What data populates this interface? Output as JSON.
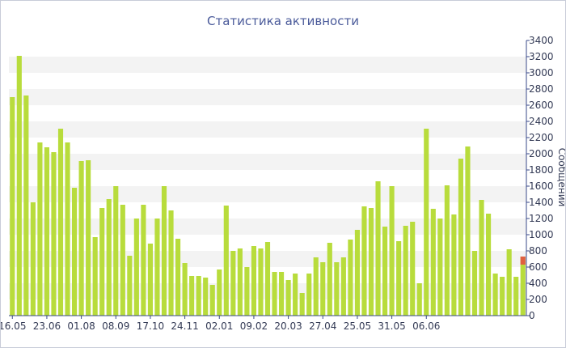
{
  "chart_data": {
    "type": "bar",
    "title": "Статистика активности",
    "ylabel": "Сообщений",
    "ylim": [
      0,
      3400
    ],
    "yticks": [
      0,
      200,
      400,
      600,
      800,
      1000,
      1200,
      1400,
      1600,
      1800,
      2000,
      2200,
      2400,
      2600,
      2800,
      3000,
      3200,
      3400
    ],
    "xticks": [
      {
        "label": "16.05",
        "index": 0
      },
      {
        "label": "23.06",
        "index": 5
      },
      {
        "label": "01.08",
        "index": 10
      },
      {
        "label": "08.09",
        "index": 15
      },
      {
        "label": "17.10",
        "index": 20
      },
      {
        "label": "24.11",
        "index": 25
      },
      {
        "label": "02.01",
        "index": 30
      },
      {
        "label": "09.02",
        "index": 35
      },
      {
        "label": "20.03",
        "index": 40
      },
      {
        "label": "27.04",
        "index": 45
      },
      {
        "label": "25.05",
        "index": 50
      },
      {
        "label": "31.05",
        "index": 55
      },
      {
        "label": "06.06",
        "index": 60
      }
    ],
    "values": [
      2700,
      3210,
      2720,
      1400,
      2140,
      2080,
      2020,
      2310,
      2140,
      1580,
      1910,
      1920,
      970,
      1330,
      1440,
      1600,
      1370,
      740,
      1200,
      1370,
      890,
      1200,
      1600,
      1300,
      950,
      650,
      490,
      490,
      470,
      380,
      570,
      1360,
      800,
      830,
      600,
      860,
      830,
      910,
      540,
      540,
      440,
      520,
      280,
      520,
      720,
      660,
      900,
      660,
      720,
      940,
      1060,
      1350,
      1330,
      1660,
      1100,
      1600,
      920,
      1110,
      1160,
      400,
      2310,
      1320,
      1200,
      1610,
      1250,
      1940,
      2090,
      800,
      1430,
      1260,
      520,
      480,
      820,
      480,
      730
    ],
    "highlight_index": 74,
    "bar_color": "#b8dc3c",
    "highlight_color": "#e06040",
    "grid": "horizontal-bands",
    "band_color": "#f3f3f3"
  }
}
